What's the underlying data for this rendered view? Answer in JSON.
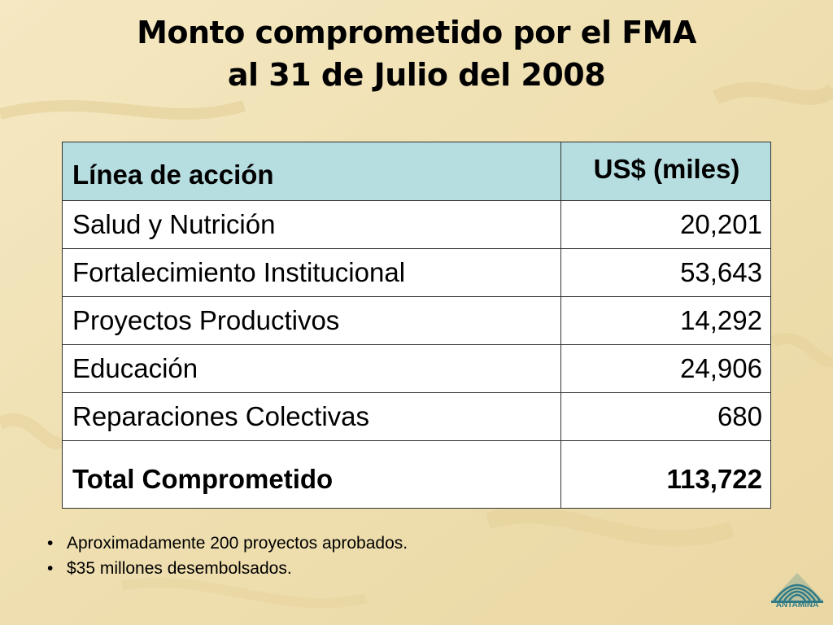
{
  "slide": {
    "title_line1": "Monto comprometido por el FMA",
    "title_line2": "al 31 de Julio del 2008"
  },
  "table": {
    "headers": [
      "Línea de acción",
      "US$ (miles)"
    ],
    "rows": [
      {
        "label": "Salud y Nutrición",
        "value": "20,201"
      },
      {
        "label": "Fortalecimiento Institucional",
        "value": "53,643"
      },
      {
        "label": "Proyectos Productivos",
        "value": "14,292"
      },
      {
        "label": "Educación",
        "value": "24,906"
      },
      {
        "label": "Reparaciones Colectivas",
        "value": "680"
      }
    ],
    "total": {
      "label": "Total Comprometido",
      "value": "113,722"
    }
  },
  "bullets": [
    "Aproximadamente 200 proyectos aprobados.",
    "$35 millones desembolsados."
  ],
  "logo": {
    "text": "ANTAMINA",
    "icon": "antamina-logo-icon",
    "color": "#2e7a86"
  },
  "colors": {
    "background": "#f2e3b8",
    "header_fill": "#b6dde0"
  }
}
